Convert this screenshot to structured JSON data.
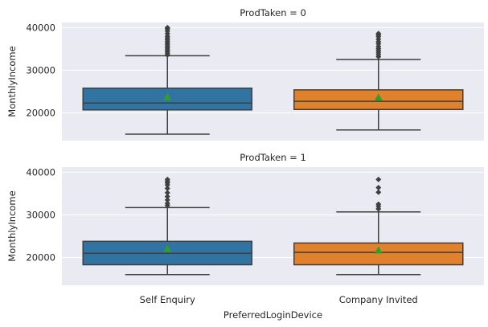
{
  "chart_data": {
    "type": "box",
    "xlabel": "PreferredLoginDevice",
    "ylabel": "MonthlyIncome",
    "categories": [
      "Self Enquiry",
      "Company Invited"
    ],
    "y_ticks": [
      20000,
      30000,
      40000
    ],
    "y_tick_labels": [
      "20000",
      "30000",
      "40000"
    ],
    "ylim": [
      13500,
      41200
    ],
    "grid": true,
    "colors": [
      "#3274a1",
      "#e1812c"
    ],
    "mean_marker_color": "#2ca02c",
    "panels": [
      {
        "title": "ProdTaken = 0",
        "boxes": [
          {
            "category": "Self Enquiry",
            "whisker_low": 15000,
            "q1": 20700,
            "median": 22300,
            "q3": 25800,
            "whisker_high": 33400,
            "mean": 23700,
            "outliers": [
              33600,
              34000,
              34400,
              34800,
              35200,
              35600,
              36000,
              36400,
              36800,
              37200,
              37600,
              38000,
              38600,
              39200,
              39700,
              40000
            ]
          },
          {
            "category": "Company Invited",
            "whisker_low": 16000,
            "q1": 20800,
            "median": 22700,
            "q3": 25400,
            "whisker_high": 32500,
            "mean": 23600,
            "outliers": [
              33200,
              33700,
              34200,
              34700,
              35100,
              35600,
              36200,
              36700,
              37300,
              37900,
              38300,
              38600
            ]
          }
        ]
      },
      {
        "title": "ProdTaken = 1",
        "boxes": [
          {
            "category": "Self Enquiry",
            "whisker_low": 16000,
            "q1": 18300,
            "median": 21000,
            "q3": 23800,
            "whisker_high": 31700,
            "mean": 22000,
            "outliers": [
              32200,
              32700,
              33500,
              34300,
              35200,
              36200,
              37000,
              37500,
              37900,
              38300
            ]
          },
          {
            "category": "Company Invited",
            "whisker_low": 16000,
            "q1": 18300,
            "median": 21200,
            "q3": 23400,
            "whisker_high": 30700,
            "mean": 21700,
            "outliers": [
              31400,
              32000,
              32500,
              35300,
              36400,
              38300
            ]
          }
        ]
      }
    ]
  }
}
